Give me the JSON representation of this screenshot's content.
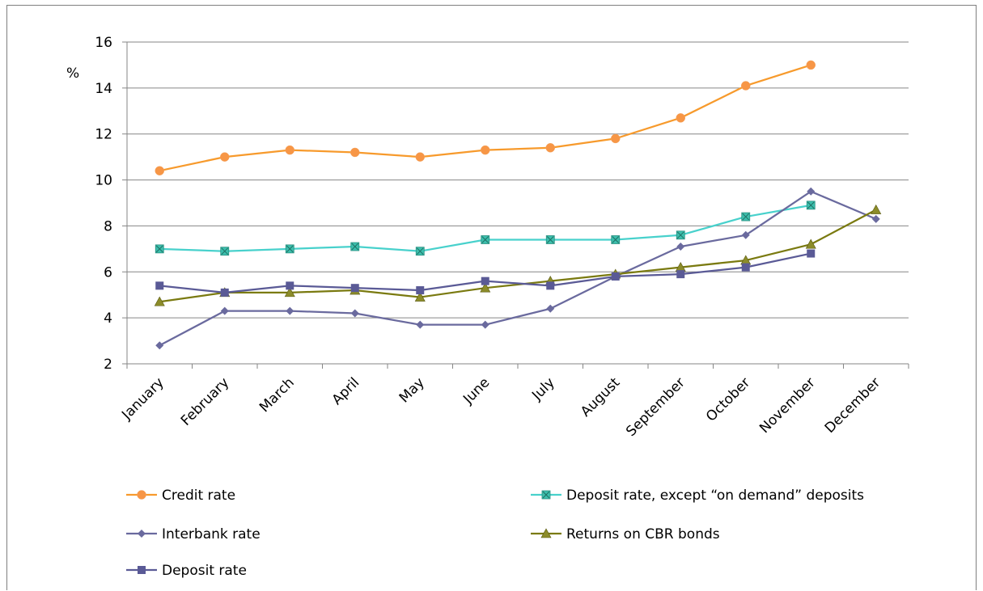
{
  "chart_data": {
    "type": "line",
    "ylabel": "%",
    "ylim": [
      2,
      16
    ],
    "yticks": [
      2,
      4,
      6,
      8,
      10,
      12,
      14,
      16
    ],
    "grid": "horizontal",
    "legend_position": "bottom",
    "categories": [
      "January",
      "February",
      "March",
      "April",
      "May",
      "June",
      "July",
      "August",
      "September",
      "October",
      "November",
      "December"
    ],
    "series": [
      {
        "name": "Credit rate",
        "color": "#f79646",
        "line_color": "#f79a2c",
        "marker": "circle",
        "values": [
          10.4,
          11.0,
          11.3,
          11.2,
          11.0,
          11.3,
          11.4,
          11.8,
          12.7,
          14.1,
          15.0,
          null
        ]
      },
      {
        "name": "Deposit rate, except “on demand” deposits",
        "color": "#3cbfad",
        "line_color": "#48d1cc",
        "marker": "square-x",
        "values": [
          7.0,
          6.9,
          7.0,
          7.1,
          6.9,
          7.4,
          7.4,
          7.4,
          7.6,
          8.4,
          8.9,
          null
        ]
      },
      {
        "name": "Interbank rate",
        "color": "#6a6a9e",
        "line_color": "#6a6a9e",
        "marker": "diamond",
        "values": [
          2.8,
          4.3,
          4.3,
          4.2,
          3.7,
          3.7,
          4.4,
          5.8,
          7.1,
          7.6,
          9.5,
          8.3
        ]
      },
      {
        "name": "Returns on CBR bonds",
        "color": "#8c8c2a",
        "line_color": "#7a7a10",
        "marker": "triangle",
        "values": [
          4.7,
          5.1,
          5.1,
          5.2,
          4.9,
          5.3,
          5.6,
          5.9,
          6.2,
          6.5,
          7.2,
          8.7
        ]
      },
      {
        "name": "Deposit rate",
        "color": "#5a5a96",
        "line_color": "#5a5a96",
        "marker": "square",
        "values": [
          5.4,
          5.1,
          5.4,
          5.3,
          5.2,
          5.6,
          5.4,
          5.8,
          5.9,
          6.2,
          6.8,
          null
        ]
      }
    ]
  }
}
